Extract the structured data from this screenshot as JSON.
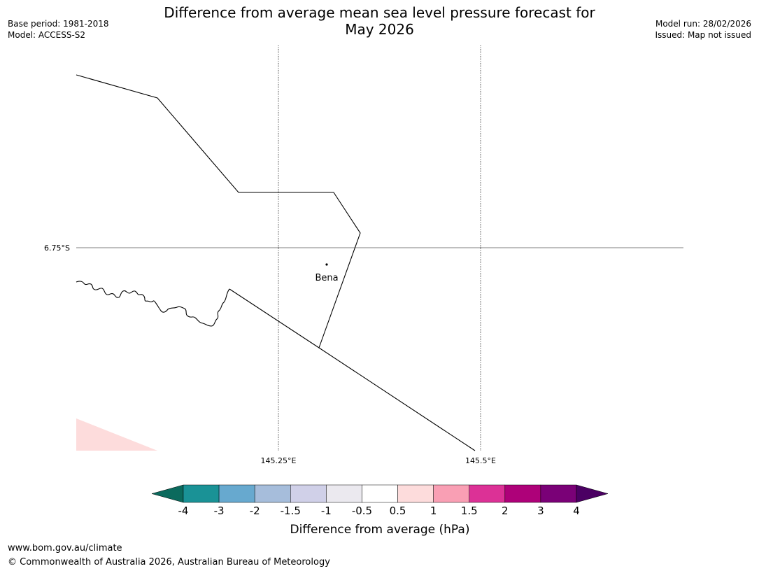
{
  "header": {
    "title_line1": "Difference from average mean sea level pressure forecast for",
    "title_line2": "May 2026",
    "base_period": "Base period: 1981-2018",
    "model": "Model: ACCESS-S2",
    "model_run": "Model run: 28/02/2026",
    "issued": "Issued: Map not issued"
  },
  "map": {
    "lat_label": "6.75°S",
    "lon_labels": [
      "145.25°E",
      "145.5°E"
    ],
    "place": {
      "name": "Bena"
    },
    "fill_color": "#fddcdc"
  },
  "colorbar": {
    "label": "Difference from average (hPa)",
    "ticks": [
      "-4",
      "-3",
      "-2",
      "-1.5",
      "-1",
      "-0.5",
      "0.5",
      "1",
      "1.5",
      "2",
      "3",
      "4"
    ],
    "under_color": "#0b6a5d",
    "over_color": "#4b0063",
    "colors": [
      "#1a9296",
      "#67a9cf",
      "#a6bddb",
      "#d0d0e8",
      "#ebe9ef",
      "#ffffff",
      "#fddcdc",
      "#f99fb4",
      "#dc3196",
      "#ae0179",
      "#7a0177"
    ]
  },
  "footer": {
    "url": "www.bom.gov.au/climate",
    "copyright": "© Commonwealth of Australia 2026, Australian Bureau of Meteorology"
  }
}
